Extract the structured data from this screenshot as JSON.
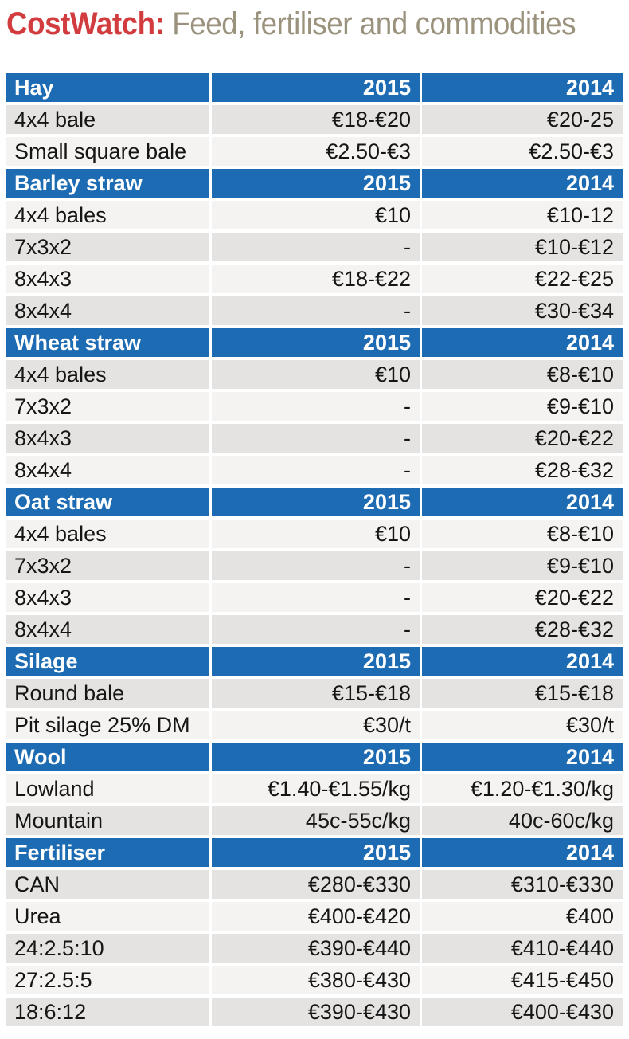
{
  "title": {
    "brand": "CostWatch:",
    "subtitle": "Feed, fertiliser and commodities"
  },
  "colors": {
    "header_blue": "#1d6cb3",
    "row_gray": "#e4e3e1",
    "row_light": "#f4f3f1",
    "brand_red": "#d23c3e",
    "subtitle_tan": "#9a927d",
    "text_dark": "#151515"
  },
  "chart_data": {
    "type": "table",
    "title": "CostWatch: Feed, fertiliser and commodities",
    "year_columns": [
      "2015",
      "2014"
    ],
    "sections": [
      {
        "name": "Hay",
        "rows": [
          {
            "label": "4x4 bale",
            "y2015": "€18-€20",
            "y2014": "€20-25"
          },
          {
            "label": "Small square bale",
            "y2015": "€2.50-€3",
            "y2014": "€2.50-€3"
          }
        ]
      },
      {
        "name": "Barley straw",
        "rows": [
          {
            "label": "4x4 bales",
            "y2015": "€10",
            "y2014": "€10-12"
          },
          {
            "label": "7x3x2",
            "y2015": "-",
            "y2014": "€10-€12"
          },
          {
            "label": "8x4x3",
            "y2015": "€18-€22",
            "y2014": "€22-€25"
          },
          {
            "label": "8x4x4",
            "y2015": "-",
            "y2014": "€30-€34"
          }
        ]
      },
      {
        "name": "Wheat straw",
        "rows": [
          {
            "label": "4x4 bales",
            "y2015": "€10",
            "y2014": "€8-€10"
          },
          {
            "label": "7x3x2",
            "y2015": "-",
            "y2014": "€9-€10"
          },
          {
            "label": "8x4x3",
            "y2015": "-",
            "y2014": "€20-€22"
          },
          {
            "label": "8x4x4",
            "y2015": "-",
            "y2014": "€28-€32"
          }
        ]
      },
      {
        "name": "Oat straw",
        "rows": [
          {
            "label": "4x4 bales",
            "y2015": "€10",
            "y2014": "€8-€10"
          },
          {
            "label": "7x3x2",
            "y2015": "-",
            "y2014": "€9-€10"
          },
          {
            "label": "8x4x3",
            "y2015": "-",
            "y2014": "€20-€22"
          },
          {
            "label": "8x4x4",
            "y2015": "-",
            "y2014": "€28-€32"
          }
        ]
      },
      {
        "name": "Silage",
        "rows": [
          {
            "label": "Round bale",
            "y2015": "€15-€18",
            "y2014": "€15-€18"
          },
          {
            "label": "Pit silage 25% DM",
            "y2015": "€30/t",
            "y2014": "€30/t"
          }
        ]
      },
      {
        "name": "Wool",
        "rows": [
          {
            "label": "Lowland",
            "y2015": "€1.40-€1.55/kg",
            "y2014": "€1.20-€1.30/kg"
          },
          {
            "label": "Mountain",
            "y2015": "45c-55c/kg",
            "y2014": "40c-60c/kg"
          }
        ]
      },
      {
        "name": "Fertiliser",
        "rows": [
          {
            "label": "CAN",
            "y2015": "€280-€330",
            "y2014": "€310-€330"
          },
          {
            "label": "Urea",
            "y2015": "€400-€420",
            "y2014": "€400"
          },
          {
            "label": "24:2.5:10",
            "y2015": "€390-€440",
            "y2014": "€410-€440"
          },
          {
            "label": "27:2.5:5",
            "y2015": "€380-€430",
            "y2014": "€415-€450"
          },
          {
            "label": "18:6:12",
            "y2015": "€390-€430",
            "y2014": "€400-€430"
          }
        ]
      }
    ]
  }
}
